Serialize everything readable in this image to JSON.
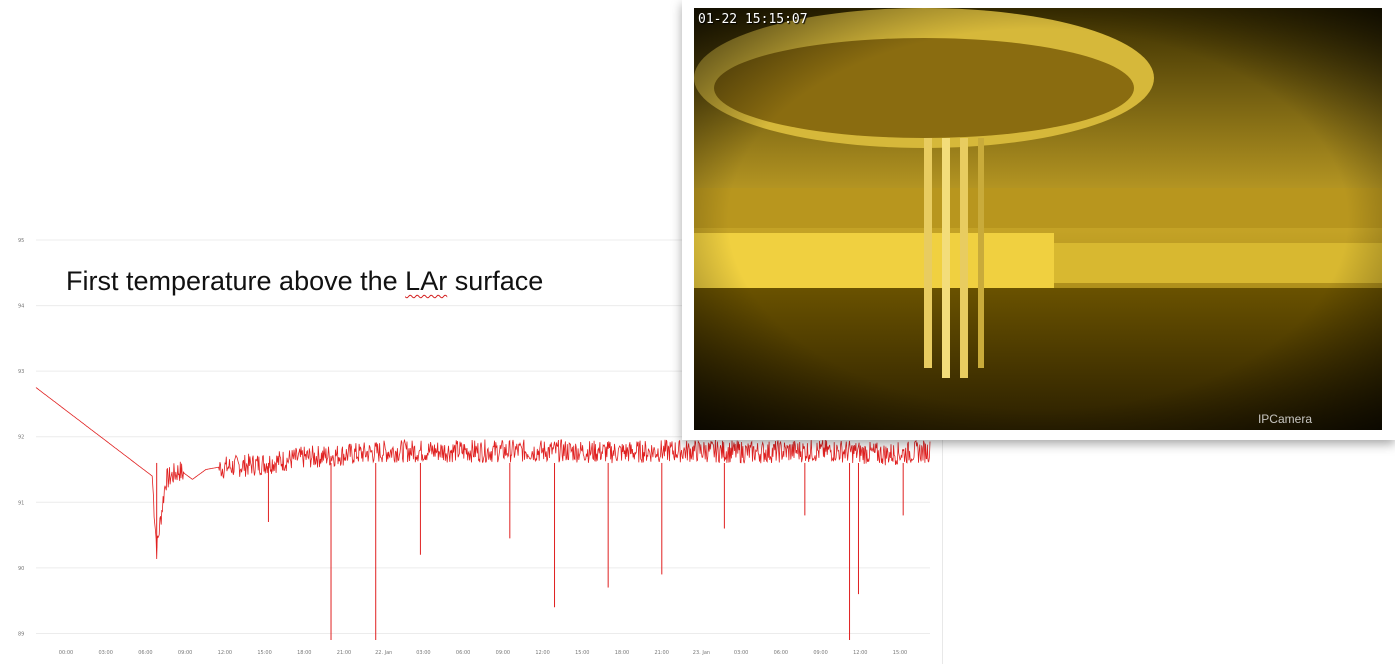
{
  "slide": {
    "caption_parts": [
      "First temperature above the ",
      "LAr",
      " surface"
    ]
  },
  "camera": {
    "timestamp": "01-22 15:15:07",
    "brand": "IPCamera"
  },
  "chart_data": {
    "type": "line",
    "title": "",
    "xlabel": "",
    "ylabel": "",
    "line_color": "#e02020",
    "grid": true,
    "x_tick_labels": [
      "00:00",
      "03:00",
      "06:00",
      "09:00",
      "12:00",
      "15:00",
      "18:00",
      "21:00",
      "22. Jan",
      "03:00",
      "06:00",
      "09:00",
      "12:00",
      "15:00",
      "18:00",
      "21:00",
      "23. Jan",
      "03:00",
      "06:00",
      "09:00",
      "12:00",
      "15:00"
    ],
    "y_tick_labels": [
      "89",
      "90",
      "91",
      "92",
      "93",
      "94",
      "95"
    ],
    "ylim": [
      88.9,
      95.0
    ],
    "series": [
      {
        "description": "noisy temperature trace, x as fraction of time axis",
        "points": [
          [
            0.0,
            92.75
          ],
          [
            0.13,
            91.4
          ],
          [
            0.135,
            90.3
          ],
          [
            0.145,
            91.35
          ],
          [
            0.16,
            91.5
          ],
          [
            0.175,
            91.35
          ],
          [
            0.19,
            91.5
          ],
          [
            0.21,
            91.55
          ],
          [
            0.25,
            91.6
          ],
          [
            0.3,
            91.7
          ],
          [
            0.35,
            91.75
          ],
          [
            0.4,
            91.8
          ],
          [
            0.45,
            91.8
          ],
          [
            0.5,
            91.8
          ],
          [
            0.55,
            91.8
          ],
          [
            0.6,
            91.8
          ],
          [
            0.65,
            91.78
          ],
          [
            0.7,
            91.8
          ],
          [
            0.75,
            91.8
          ],
          [
            0.8,
            91.78
          ],
          [
            0.85,
            91.8
          ],
          [
            0.9,
            91.8
          ],
          [
            0.95,
            91.75
          ],
          [
            1.0,
            91.8
          ]
        ],
        "dips": [
          [
            0.135,
            90.3
          ],
          [
            0.26,
            90.7
          ],
          [
            0.33,
            88.9
          ],
          [
            0.38,
            88.9
          ],
          [
            0.43,
            90.2
          ],
          [
            0.53,
            90.45
          ],
          [
            0.58,
            89.4
          ],
          [
            0.64,
            89.7
          ],
          [
            0.7,
            89.9
          ],
          [
            0.77,
            90.6
          ],
          [
            0.86,
            90.8
          ],
          [
            0.91,
            88.9
          ],
          [
            0.92,
            89.6
          ],
          [
            0.97,
            90.8
          ]
        ],
        "gap": [
          0.165,
          0.205
        ],
        "noise_amplitude": 0.25
      }
    ]
  }
}
